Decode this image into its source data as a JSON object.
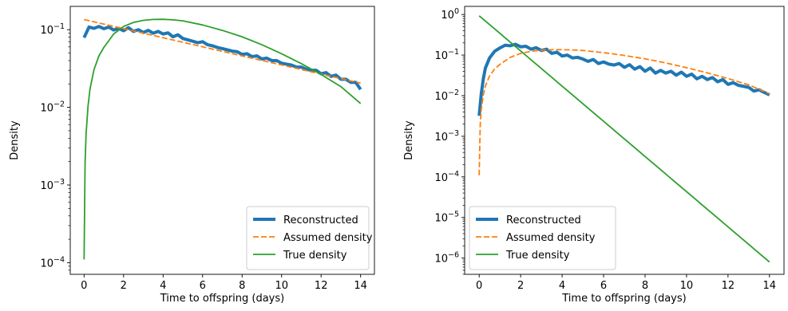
{
  "chart_data": [
    {
      "type": "line",
      "xlabel": "Time to offspring (days)",
      "ylabel": "Density",
      "xlim": [
        -0.7,
        14.7
      ],
      "ylim_log10": [
        -4.15,
        -0.7
      ],
      "y_scale": "log",
      "x_ticks": [
        0,
        2,
        4,
        6,
        8,
        10,
        12,
        14
      ],
      "x_tick_labels": [
        "0",
        "2",
        "4",
        "6",
        "8",
        "10",
        "12",
        "14"
      ],
      "y_ticks": [
        -4,
        -3,
        -2,
        -1
      ],
      "y_tick_labels": [
        {
          "base": "10",
          "exp": "−4"
        },
        {
          "base": "10",
          "exp": "−3"
        },
        {
          "base": "10",
          "exp": "−2"
        },
        {
          "base": "10",
          "exp": "−1"
        }
      ],
      "legend": {
        "placement": "lower right"
      },
      "series": [
        {
          "name": "Reconstructed",
          "color": "#1f77b4",
          "style": "solid-thick",
          "x": [
            0.0,
            0.25,
            0.5,
            0.75,
            1.0,
            1.25,
            1.5,
            1.75,
            2.0,
            2.25,
            2.5,
            2.75,
            3.0,
            3.25,
            3.5,
            3.75,
            4.0,
            4.25,
            4.5,
            4.75,
            5.0,
            5.25,
            5.5,
            5.75,
            6.0,
            6.25,
            6.5,
            6.75,
            7.0,
            7.25,
            7.5,
            7.75,
            8.0,
            8.25,
            8.5,
            8.75,
            9.0,
            9.25,
            9.5,
            9.75,
            10.0,
            10.25,
            10.5,
            10.75,
            11.0,
            11.25,
            11.5,
            11.75,
            12.0,
            12.25,
            12.5,
            12.75,
            13.0,
            13.25,
            13.5,
            13.75,
            14.0
          ],
          "y": [
            0.079,
            0.108,
            0.104,
            0.11,
            0.103,
            0.108,
            0.099,
            0.104,
            0.097,
            0.106,
            0.095,
            0.1,
            0.092,
            0.098,
            0.09,
            0.095,
            0.088,
            0.091,
            0.081,
            0.086,
            0.077,
            0.074,
            0.071,
            0.068,
            0.07,
            0.064,
            0.062,
            0.059,
            0.057,
            0.055,
            0.053,
            0.052,
            0.048,
            0.049,
            0.045,
            0.046,
            0.042,
            0.043,
            0.04,
            0.04,
            0.037,
            0.036,
            0.035,
            0.033,
            0.033,
            0.031,
            0.03,
            0.03,
            0.027,
            0.028,
            0.025,
            0.026,
            0.023,
            0.023,
            0.021,
            0.021,
            0.017
          ]
        },
        {
          "name": "Assumed density",
          "color": "#ff7f0e",
          "style": "dashed",
          "x": [
            0,
            14
          ],
          "y": [
            0.135,
            0.0205
          ],
          "interpolation": "log-linear"
        },
        {
          "name": "True density",
          "color": "#2ca02c",
          "style": "solid",
          "x": [
            0.0,
            0.05,
            0.1,
            0.2,
            0.3,
            0.5,
            0.75,
            1.0,
            1.5,
            2.0,
            2.5,
            3.0,
            3.5,
            4.0,
            4.5,
            5.0,
            6.0,
            7.0,
            8.0,
            9.0,
            10.0,
            11.0,
            12.0,
            13.0,
            14.0
          ],
          "y": [
            0.00011,
            0.0019,
            0.0045,
            0.0104,
            0.0172,
            0.0305,
            0.0459,
            0.059,
            0.088,
            0.11,
            0.124,
            0.132,
            0.1355,
            0.136,
            0.134,
            0.13,
            0.115,
            0.098,
            0.081,
            0.064,
            0.049,
            0.0365,
            0.0265,
            0.0185,
            0.0112
          ]
        }
      ]
    },
    {
      "type": "line",
      "xlabel": "Time to offspring (days)",
      "ylabel": "Density",
      "xlim": [
        -0.7,
        14.7
      ],
      "ylim_log10": [
        -6.4,
        0.2
      ],
      "y_scale": "log",
      "x_ticks": [
        0,
        2,
        4,
        6,
        8,
        10,
        12,
        14
      ],
      "x_tick_labels": [
        "0",
        "2",
        "4",
        "6",
        "8",
        "10",
        "12",
        "14"
      ],
      "y_ticks": [
        -6,
        -5,
        -4,
        -3,
        -2,
        -1,
        0
      ],
      "y_tick_labels": [
        {
          "base": "10",
          "exp": "−6"
        },
        {
          "base": "10",
          "exp": "−5"
        },
        {
          "base": "10",
          "exp": "−4"
        },
        {
          "base": "10",
          "exp": "−3"
        },
        {
          "base": "10",
          "exp": "−2"
        },
        {
          "base": "10",
          "exp": "−1"
        },
        {
          "base": "10",
          "exp": "0"
        }
      ],
      "legend": {
        "placement": "lower left"
      },
      "series": [
        {
          "name": "Reconstructed",
          "color": "#1f77b4",
          "style": "solid-thick",
          "x": [
            0.0,
            0.1,
            0.2,
            0.3,
            0.5,
            0.75,
            1.0,
            1.25,
            1.5,
            1.75,
            2.0,
            2.25,
            2.5,
            2.75,
            3.0,
            3.25,
            3.5,
            3.75,
            4.0,
            4.25,
            4.5,
            4.75,
            5.0,
            5.25,
            5.5,
            5.75,
            6.0,
            6.25,
            6.5,
            6.75,
            7.0,
            7.25,
            7.5,
            7.75,
            8.0,
            8.25,
            8.5,
            8.75,
            9.0,
            9.25,
            9.5,
            9.75,
            10.0,
            10.25,
            10.5,
            10.75,
            11.0,
            11.25,
            11.5,
            11.75,
            12.0,
            12.25,
            12.5,
            12.75,
            13.0,
            13.25,
            13.5,
            13.75,
            14.0
          ],
          "y": [
            0.0032,
            0.011,
            0.026,
            0.048,
            0.085,
            0.125,
            0.15,
            0.175,
            0.17,
            0.185,
            0.16,
            0.165,
            0.14,
            0.152,
            0.13,
            0.14,
            0.11,
            0.118,
            0.095,
            0.1,
            0.085,
            0.088,
            0.08,
            0.07,
            0.078,
            0.062,
            0.068,
            0.06,
            0.057,
            0.062,
            0.05,
            0.058,
            0.045,
            0.052,
            0.04,
            0.048,
            0.036,
            0.042,
            0.036,
            0.04,
            0.032,
            0.038,
            0.03,
            0.034,
            0.026,
            0.03,
            0.025,
            0.028,
            0.022,
            0.025,
            0.019,
            0.021,
            0.018,
            0.017,
            0.016,
            0.013,
            0.014,
            0.012,
            0.0105
          ]
        },
        {
          "name": "Assumed density",
          "color": "#ff7f0e",
          "style": "dashed",
          "x": [
            0.0,
            0.05,
            0.1,
            0.2,
            0.3,
            0.5,
            0.75,
            1.0,
            1.5,
            2.0,
            2.5,
            3.0,
            3.5,
            4.0,
            4.5,
            5.0,
            6.0,
            7.0,
            8.0,
            9.0,
            10.0,
            11.0,
            12.0,
            13.0,
            14.0
          ],
          "y": [
            0.00011,
            0.0019,
            0.0045,
            0.0104,
            0.0172,
            0.0305,
            0.0459,
            0.059,
            0.088,
            0.11,
            0.124,
            0.132,
            0.1355,
            0.136,
            0.134,
            0.13,
            0.115,
            0.098,
            0.081,
            0.064,
            0.049,
            0.0365,
            0.0265,
            0.0185,
            0.0112
          ]
        },
        {
          "name": "True density",
          "color": "#2ca02c",
          "style": "solid",
          "x": [
            0,
            14
          ],
          "y": [
            0.93,
            8e-07
          ],
          "interpolation": "log-linear"
        }
      ]
    }
  ]
}
